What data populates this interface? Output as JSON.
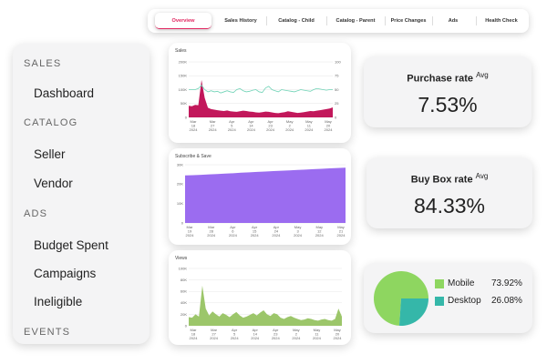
{
  "tabs": [
    {
      "label": "Overview",
      "active": true
    },
    {
      "label": "Sales History",
      "active": false
    },
    {
      "label": "Catalog - Child",
      "active": false
    },
    {
      "label": "Catalog - Parent",
      "active": false
    },
    {
      "label": "Price Changes",
      "active": false
    },
    {
      "label": "Ads",
      "active": false
    },
    {
      "label": "Health Check",
      "active": false
    }
  ],
  "sidebar": {
    "sections": [
      {
        "heading": "SALES",
        "items": [
          "Dashboard"
        ]
      },
      {
        "heading": "CATALOG",
        "items": [
          "Seller",
          "Vendor"
        ]
      },
      {
        "heading": "ADS",
        "items": [
          "Budget Spent",
          "Campaigns",
          "Ineligible"
        ]
      },
      {
        "heading": "EVENTS",
        "items": []
      }
    ]
  },
  "kpis": {
    "purchase_rate": {
      "label": "Purchase rate",
      "sup": "Avg",
      "value": "7.53%"
    },
    "buy_box_rate": {
      "label": "Buy Box rate",
      "sup": "Avg",
      "value": "84.33%"
    }
  },
  "colors": {
    "accent": "#e0245e",
    "sales_area": "#c2185b",
    "sales_line": "#6fd3b6",
    "subscribe_area": "#9b6cf0",
    "views_area": "#9cc66a",
    "mobile": "#8ed660",
    "desktop": "#35b7a9"
  },
  "chart_data": [
    {
      "type": "area",
      "title": "Sales",
      "x_ticks": [
        {
          "month": "Mar",
          "day": "18",
          "year": "2024"
        },
        {
          "month": "Mar",
          "day": "27",
          "year": "2024"
        },
        {
          "month": "Apr",
          "day": "5",
          "year": "2024"
        },
        {
          "month": "Apr",
          "day": "14",
          "year": "2024"
        },
        {
          "month": "Apr",
          "day": "23",
          "year": "2024"
        },
        {
          "month": "May",
          "day": "2",
          "year": "2024"
        },
        {
          "month": "May",
          "day": "11",
          "year": "2024"
        },
        {
          "month": "May",
          "day": "20",
          "year": "2024"
        }
      ],
      "y_ticks_left": [
        "0",
        "50K",
        "100K",
        "150K",
        "200K"
      ],
      "y_ticks_right": [
        "0",
        "25",
        "50",
        "75",
        "100"
      ],
      "ylim_left": [
        0,
        200000
      ],
      "ylim_right": [
        0,
        100
      ],
      "series": [
        {
          "kind": "area",
          "axis": "left",
          "values": [
            42000,
            40000,
            45000,
            44000,
            135000,
            70000,
            35000,
            30000,
            28000,
            26000,
            24000,
            23000,
            25000,
            22000,
            21000,
            20000,
            22000,
            24000,
            23000,
            21000,
            20000,
            18000,
            17000,
            19000,
            21000,
            20000,
            18000,
            16000,
            15000,
            17000,
            19000,
            22000,
            20000,
            18000,
            16000,
            17000,
            19000,
            21000,
            23000,
            22000,
            24000,
            26000,
            28000,
            30000,
            32000,
            36000
          ]
        },
        {
          "kind": "line",
          "axis": "right",
          "values": [
            50,
            50,
            50,
            52,
            58,
            50,
            46,
            48,
            46,
            47,
            44,
            46,
            48,
            46,
            45,
            50,
            52,
            48,
            46,
            47,
            49,
            50,
            46,
            45,
            53,
            56,
            50,
            48,
            46,
            50,
            49,
            48,
            47,
            46,
            48,
            50,
            49,
            48,
            47,
            50,
            52,
            51,
            50,
            49,
            50,
            50
          ]
        }
      ]
    },
    {
      "type": "area",
      "title": "Subscribe & Save",
      "x_ticks": [
        {
          "month": "Mar",
          "day": "19",
          "year": "2024"
        },
        {
          "month": "Mar",
          "day": "28",
          "year": "2024"
        },
        {
          "month": "Apr",
          "day": "6",
          "year": "2024"
        },
        {
          "month": "Apr",
          "day": "15",
          "year": "2024"
        },
        {
          "month": "Apr",
          "day": "24",
          "year": "2024"
        },
        {
          "month": "May",
          "day": "3",
          "year": "2024"
        },
        {
          "month": "May",
          "day": "12",
          "year": "2024"
        },
        {
          "month": "May",
          "day": "21",
          "year": "2024"
        }
      ],
      "y_ticks_left": [
        "0",
        "10K",
        "20K",
        "30K"
      ],
      "ylim_left": [
        0,
        30000
      ],
      "series": [
        {
          "kind": "area",
          "axis": "left",
          "values": [
            24500,
            24600,
            24800,
            25000,
            25200,
            25400,
            25600,
            25900,
            26100,
            26300,
            26500,
            26700,
            26900,
            27100,
            27300,
            27500,
            27700,
            27900,
            28100,
            28300,
            28500
          ]
        }
      ]
    },
    {
      "type": "area",
      "title": "Views",
      "x_ticks": [
        {
          "month": "Mar",
          "day": "18",
          "year": "2024"
        },
        {
          "month": "Mar",
          "day": "27",
          "year": "2024"
        },
        {
          "month": "Apr",
          "day": "5",
          "year": "2024"
        },
        {
          "month": "Apr",
          "day": "14",
          "year": "2024"
        },
        {
          "month": "Apr",
          "day": "23",
          "year": "2024"
        },
        {
          "month": "May",
          "day": "2",
          "year": "2024"
        },
        {
          "month": "May",
          "day": "11",
          "year": "2024"
        },
        {
          "month": "May",
          "day": "20",
          "year": "2024"
        }
      ],
      "y_ticks_left": [
        "0",
        "20K",
        "40K",
        "60K",
        "80K",
        "100K"
      ],
      "ylim_left": [
        0,
        100000
      ],
      "series": [
        {
          "kind": "area",
          "axis": "left",
          "values": [
            15000,
            14000,
            20000,
            16000,
            70000,
            30000,
            18000,
            25000,
            20000,
            16000,
            22000,
            19000,
            15000,
            20000,
            24000,
            18000,
            14000,
            16000,
            19000,
            22000,
            18000,
            23000,
            27000,
            20000,
            17000,
            22000,
            20000,
            14000,
            12000,
            15000,
            17000,
            14000,
            12000,
            10000,
            11000,
            13000,
            12000,
            10000,
            9000,
            11000,
            12000,
            10000,
            9000,
            12000,
            30000,
            16000
          ]
        }
      ]
    },
    {
      "type": "pie",
      "slices": [
        {
          "label": "Mobile",
          "value": 73.92,
          "display": "73.92%"
        },
        {
          "label": "Desktop",
          "value": 26.08,
          "display": "26.08%"
        }
      ]
    }
  ]
}
